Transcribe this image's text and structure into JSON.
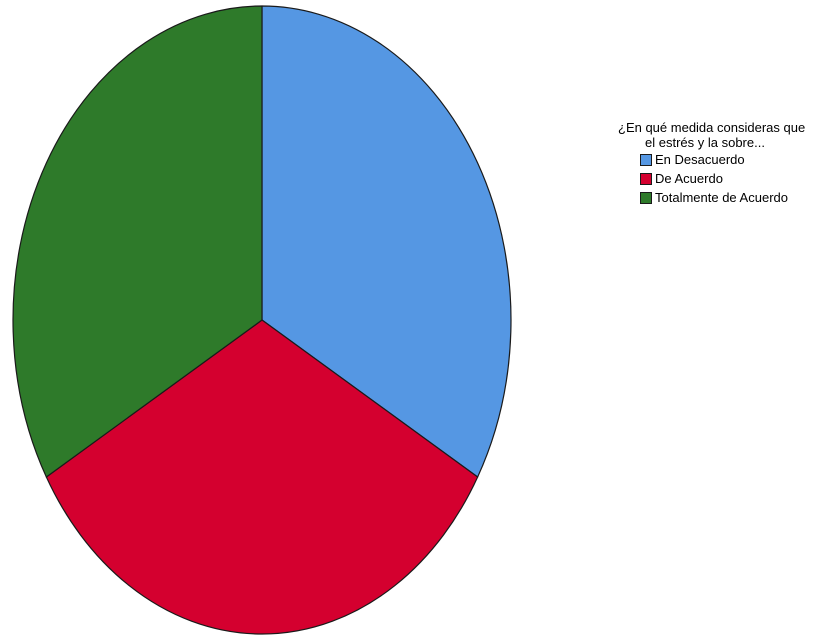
{
  "chart_data": {
    "type": "pie",
    "title": "",
    "legend_title": "¿En qué medida consideras que el estrés y la sobre...",
    "legend_title_lines": [
      "¿En qué medida consideras que",
      "el estrés y la sobre..."
    ],
    "legend_placement": "right",
    "categories": [
      "En Desacuerdo",
      "De Acuerdo",
      "Totalmente de Acuerdo"
    ],
    "values": [
      33.33,
      33.33,
      33.33
    ],
    "colors": [
      "#5597e3",
      "#d4002f",
      "#2e7a2a"
    ],
    "start_angle_deg": 0,
    "direction": "clockwise",
    "slice_border_color": "#1a1a1a"
  }
}
